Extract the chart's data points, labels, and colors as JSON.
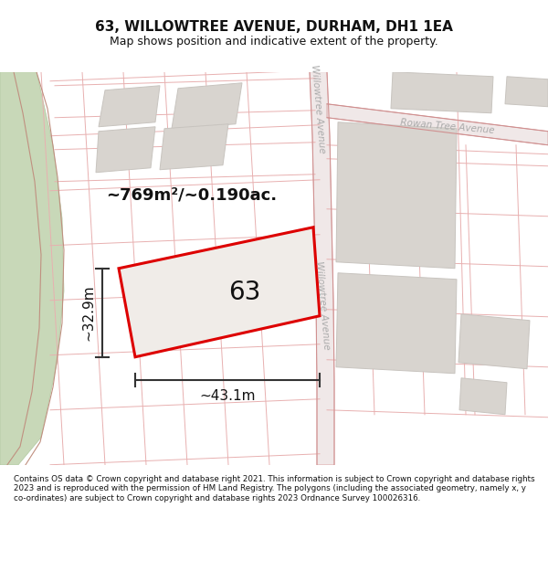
{
  "title": "63, WILLOWTREE AVENUE, DURHAM, DH1 1EA",
  "subtitle": "Map shows position and indicative extent of the property.",
  "footer": "Contains OS data © Crown copyright and database right 2021. This information is subject to Crown copyright and database rights 2023 and is reproduced with the permission of HM Land Registry. The polygons (including the associated geometry, namely x, y co-ordinates) are subject to Crown copyright and database rights 2023 Ordnance Survey 100026316.",
  "area_label": "~769m²/~0.190ac.",
  "plot_number": "63",
  "dim_width": "~43.1m",
  "dim_height": "~32.9m",
  "map_bg": "#f8f5f0",
  "road_line_color": "#e8b0b0",
  "road_fill_color": "#f0e0e0",
  "plot_outline_color": "#dd0000",
  "plot_fill": "#eeebe6",
  "block_fill": "#d8d4cf",
  "block_edge": "#c8c4bf",
  "green_fill": "#c8d8b8",
  "green_edge": "#b0c8a0",
  "road_label_color": "#aaaaaa",
  "dim_color": "#333333",
  "title_fontsize": 11,
  "subtitle_fontsize": 9,
  "footer_fontsize": 6.3
}
